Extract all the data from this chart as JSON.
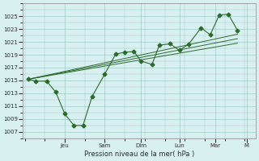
{
  "xlabel": "Pression niveau de la mer( hPa )",
  "bg_color": "#d8f0f0",
  "grid_color": "#a0c8c8",
  "line_color": "#2d6a2d",
  "ylim": [
    1006,
    1027
  ],
  "yticks": [
    1007,
    1009,
    1011,
    1013,
    1015,
    1017,
    1019,
    1021,
    1023,
    1025
  ],
  "day_positions": [
    2.0,
    4.2,
    6.2,
    8.3,
    10.3,
    12.0
  ],
  "day_labels": [
    "Jeu",
    "Sam",
    "Dim",
    "Lun",
    "Mar",
    "M"
  ],
  "main_x": [
    0,
    0.4,
    1.0,
    1.5,
    2.0,
    2.5,
    3.0,
    3.5,
    4.2,
    4.8,
    5.3,
    5.8,
    6.2,
    6.8,
    7.2,
    7.8,
    8.3,
    8.8,
    9.5,
    10.0,
    10.5,
    11.0,
    11.5
  ],
  "main_y": [
    1015.2,
    1014.9,
    1014.9,
    1013.2,
    1009.8,
    1008.0,
    1008.0,
    1012.5,
    1016.0,
    1019.1,
    1019.4,
    1019.5,
    1018.0,
    1017.5,
    1020.5,
    1020.7,
    1019.7,
    1020.6,
    1023.2,
    1022.1,
    1025.2,
    1025.3,
    1022.8
  ],
  "trend1_x": [
    0,
    11.5
  ],
  "trend1_y": [
    1015.2,
    1021.5
  ],
  "trend2_x": [
    0,
    11.5
  ],
  "trend2_y": [
    1015.2,
    1020.8
  ],
  "trend3_x": [
    0,
    11.5
  ],
  "trend3_y": [
    1015.2,
    1022.2
  ],
  "xlim": [
    -0.3,
    12.5
  ],
  "figsize": [
    3.2,
    2.0
  ],
  "dpi": 100
}
